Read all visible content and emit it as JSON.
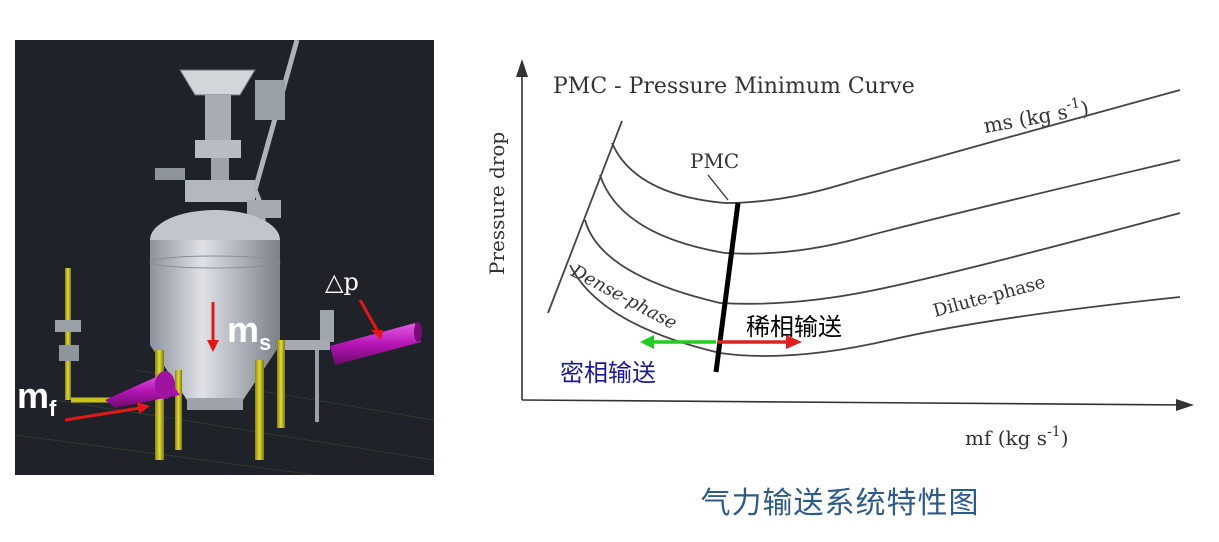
{
  "equipment": {
    "ms_main": "m",
    "ms_sub": "s",
    "mf_main": "m",
    "mf_sub": "f",
    "dp_label": "△p",
    "colors": {
      "background": "#1f2229",
      "vessel": "#c4c8cf",
      "pipe": "#c21ac2",
      "supports": "#c9c21c",
      "arrow": "#e01818"
    }
  },
  "chart": {
    "title": "PMC - Pressure Minimum Curve",
    "ylabel": "Pressure drop",
    "xlabel_main": "mf (kg s",
    "xlabel_sup": "-1",
    "xlabel_end": ")",
    "series_label_main": "ms (kg s",
    "series_label_sup": "-1",
    "series_label_end": ")",
    "pmc_label": "PMC",
    "dense_label": "Dense-phase",
    "dilute_label": "Dilute-phase",
    "dilute_cn": "稀相输送",
    "dense_cn": "密相输送",
    "colors": {
      "curves": "#444444",
      "pmc_line": "#000000",
      "dense_arrow": "#22cc22",
      "dilute_arrow": "#e02020",
      "dense_cn_text": "#1a1aa0",
      "dilute_cn_text": "#000000"
    }
  },
  "caption": "气力输送系统特性图"
}
